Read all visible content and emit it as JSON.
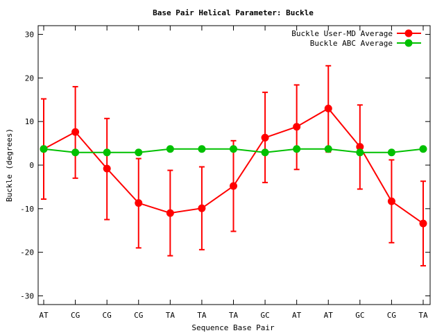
{
  "chart_data": {
    "type": "line",
    "title": "Base Pair Helical Parameter: Buckle",
    "xlabel": "Sequence Base Pair",
    "ylabel": "Buckle (degrees)",
    "ylim": [
      -32,
      32
    ],
    "yticks": [
      30,
      20,
      10,
      0,
      -10,
      -20,
      -30
    ],
    "categories": [
      "AT",
      "CG",
      "CG",
      "CG",
      "TA",
      "TA",
      "TA",
      "GC",
      "AT",
      "AT",
      "GC",
      "CG",
      "TA"
    ],
    "grid": false,
    "legend_position": "top-right",
    "series": [
      {
        "name": "Buckle User-MD Average",
        "color": "#ff0000",
        "values": [
          3.7,
          7.6,
          -0.8,
          -8.7,
          -11.0,
          -9.9,
          -4.8,
          6.3,
          8.8,
          13.0,
          4.2,
          -8.3,
          -13.4
        ],
        "error_low": [
          -7.8,
          -3.0,
          -12.5,
          -19.0,
          -20.8,
          -19.4,
          -15.2,
          -4.0,
          -1.0,
          3.0,
          -5.5,
          -17.8,
          -23.1
        ],
        "error_high": [
          15.2,
          18.0,
          10.7,
          1.5,
          -1.2,
          -0.4,
          5.6,
          16.7,
          18.4,
          22.8,
          13.8,
          1.2,
          -3.7
        ]
      },
      {
        "name": "Buckle ABC Average",
        "color": "#00c000",
        "values": [
          3.7,
          2.9,
          2.9,
          2.9,
          3.7,
          3.7,
          3.7,
          2.9,
          3.7,
          3.7,
          2.9,
          2.9,
          3.7
        ]
      }
    ]
  }
}
